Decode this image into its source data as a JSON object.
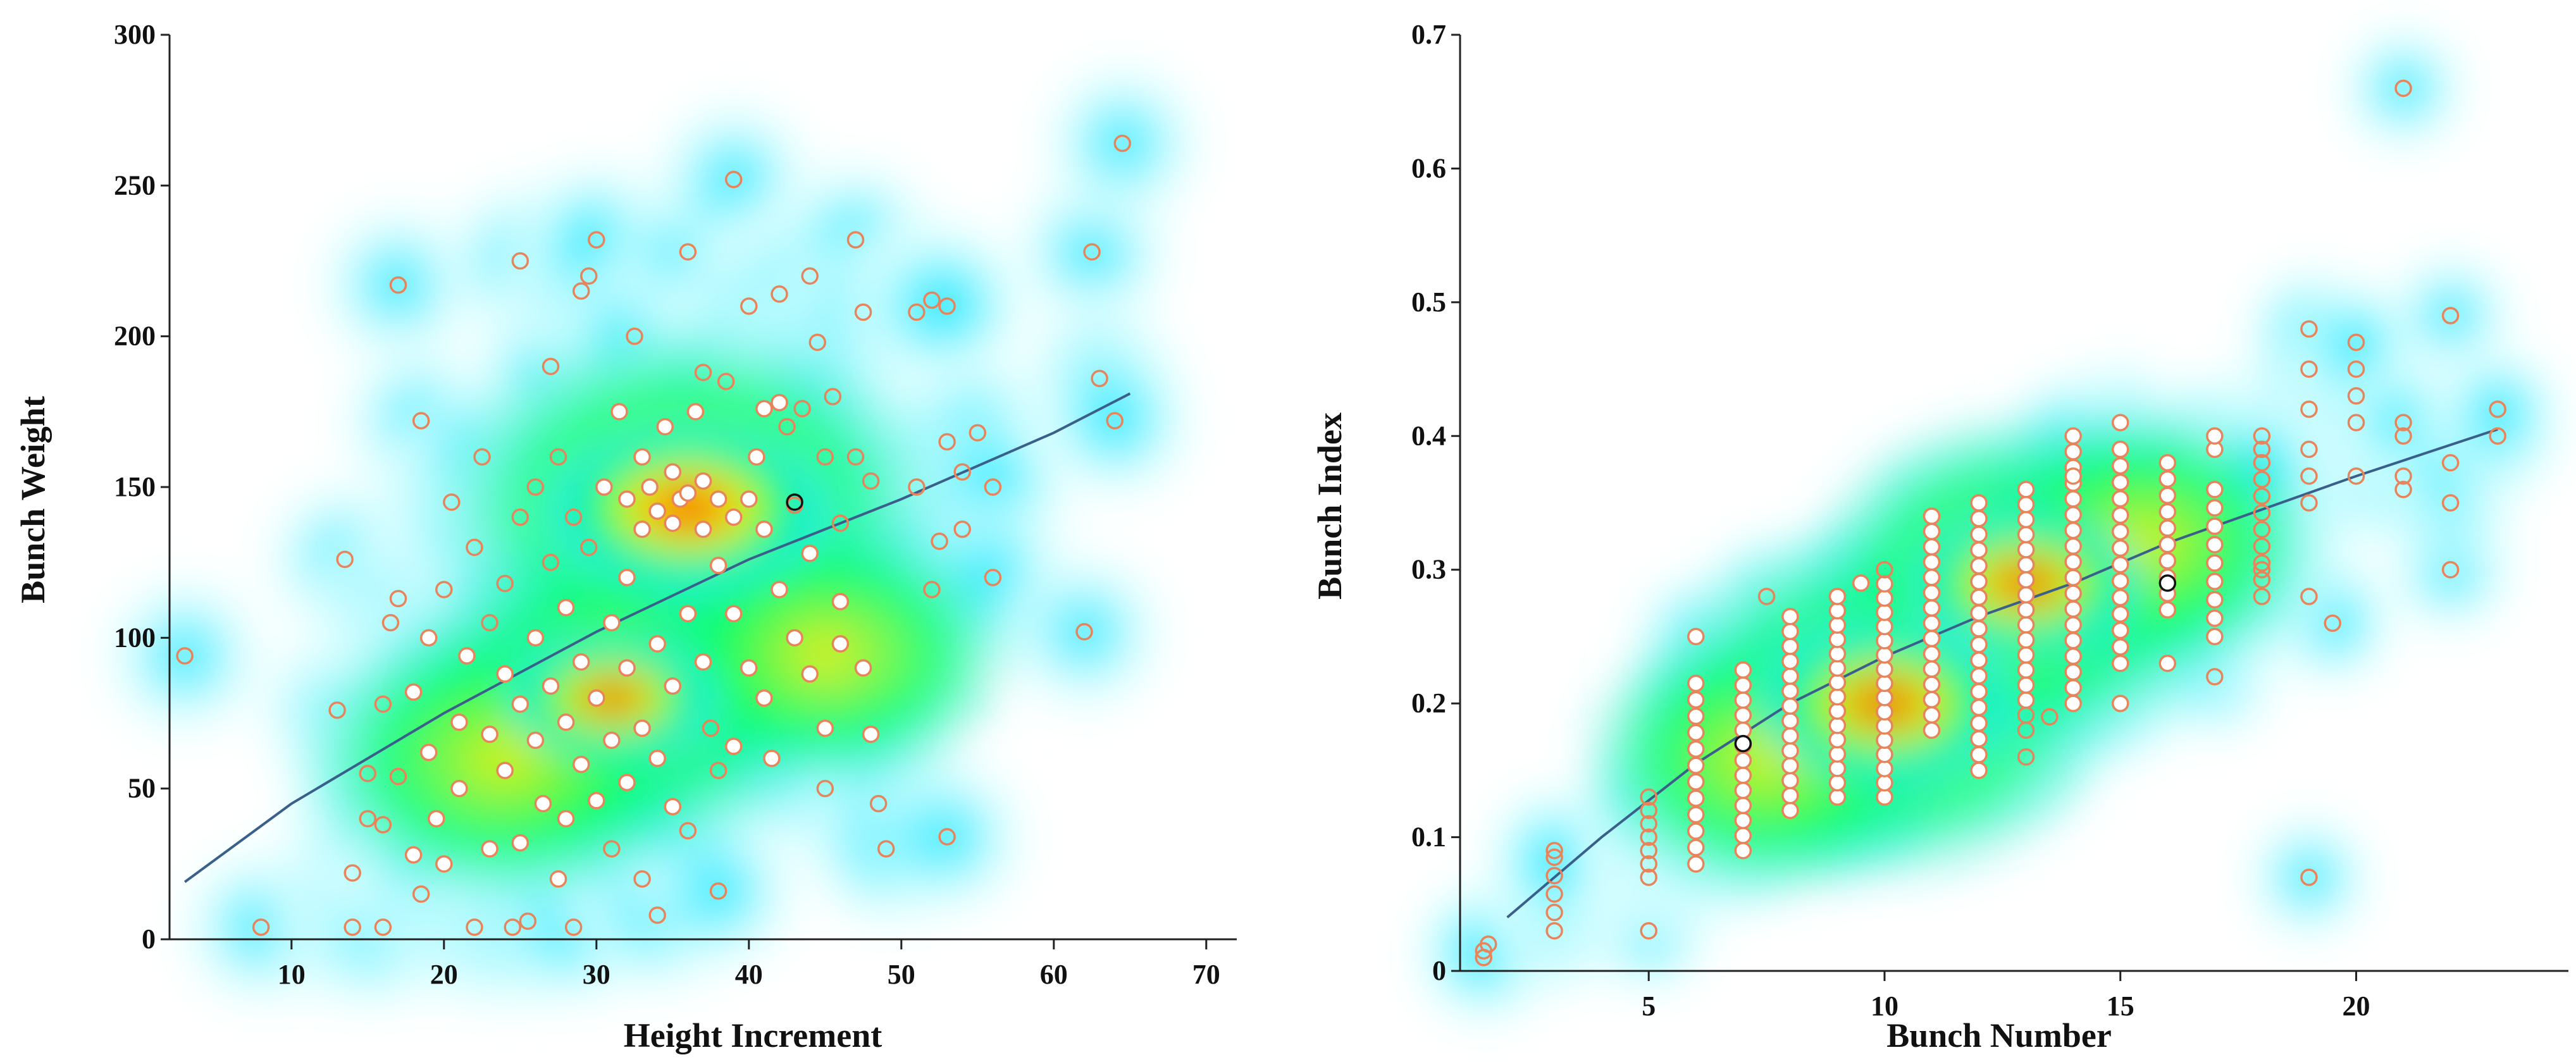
{
  "colors": {
    "marker_stroke": "#e8845a",
    "marker_fill_dense": "#ffffff",
    "trend_line": "#3a5f8a",
    "density_scale": [
      "#e0ffff",
      "#00e5ff",
      "#00ff66",
      "#ffee00",
      "#ff8800",
      "#e02000"
    ]
  },
  "chart_data": [
    {
      "type": "scatter",
      "overlay": "kernel-density-heatmap",
      "xlabel": "Height Increment",
      "ylabel": "Bunch Weight",
      "xlim": [
        2,
        72
      ],
      "ylim": [
        0,
        300
      ],
      "xticks": [
        "10",
        "20",
        "30",
        "40",
        "50",
        "60",
        "70"
      ],
      "yticks": [
        "0",
        "50",
        "100",
        "150",
        "200",
        "250",
        "300"
      ],
      "x_tick_values": [
        10,
        20,
        30,
        40,
        50,
        60,
        70
      ],
      "y_tick_values": [
        0,
        50,
        100,
        150,
        200,
        250,
        300
      ],
      "trend_line": {
        "x": [
          3,
          10,
          20,
          30,
          40,
          50,
          60,
          65
        ],
        "y": [
          19,
          45,
          75,
          102,
          126,
          146,
          168,
          181
        ]
      },
      "density_peaks": [
        {
          "x": 36,
          "y": 143,
          "weight": 1.0
        },
        {
          "x": 31,
          "y": 80,
          "weight": 0.75
        },
        {
          "x": 24,
          "y": 60,
          "weight": 0.55
        },
        {
          "x": 45,
          "y": 95,
          "weight": 0.45
        }
      ],
      "points": [
        [
          3,
          94
        ],
        [
          8,
          4
        ],
        [
          13,
          76
        ],
        [
          13.5,
          126
        ],
        [
          14,
          4
        ],
        [
          14,
          22
        ],
        [
          15,
          40
        ],
        [
          15,
          55
        ],
        [
          16,
          4
        ],
        [
          16,
          38
        ],
        [
          16,
          78
        ],
        [
          16.5,
          105
        ],
        [
          17,
          113
        ],
        [
          17,
          54
        ],
        [
          17,
          217
        ],
        [
          18,
          28
        ],
        [
          18,
          82
        ],
        [
          18.5,
          15
        ],
        [
          18.5,
          172
        ],
        [
          19,
          100
        ],
        [
          19,
          62
        ],
        [
          19.5,
          40
        ],
        [
          20,
          116
        ],
        [
          20,
          25
        ],
        [
          20.5,
          145
        ],
        [
          21,
          72
        ],
        [
          21,
          50
        ],
        [
          21.5,
          94
        ],
        [
          22,
          4
        ],
        [
          22,
          130
        ],
        [
          22.5,
          160
        ],
        [
          23,
          68
        ],
        [
          23,
          105
        ],
        [
          23,
          30
        ],
        [
          24,
          118
        ],
        [
          24,
          88
        ],
        [
          24,
          56
        ],
        [
          24.5,
          4
        ],
        [
          25,
          225
        ],
        [
          25,
          140
        ],
        [
          25,
          78
        ],
        [
          25,
          32
        ],
        [
          25.5,
          6
        ],
        [
          26,
          100
        ],
        [
          26,
          66
        ],
        [
          26,
          150
        ],
        [
          26.5,
          45
        ],
        [
          27,
          125
        ],
        [
          27,
          84
        ],
        [
          27,
          190
        ],
        [
          27.5,
          20
        ],
        [
          27.5,
          160
        ],
        [
          28,
          110
        ],
        [
          28,
          72
        ],
        [
          28,
          40
        ],
        [
          28.5,
          140
        ],
        [
          28.5,
          4
        ],
        [
          29,
          215
        ],
        [
          29,
          92
        ],
        [
          29,
          58
        ],
        [
          29.5,
          220
        ],
        [
          29.5,
          130
        ],
        [
          30,
          232
        ],
        [
          30,
          80
        ],
        [
          30,
          46
        ],
        [
          30.5,
          150
        ],
        [
          31,
          105
        ],
        [
          31,
          66
        ],
        [
          31,
          30
        ],
        [
          31.5,
          175
        ],
        [
          32,
          146
        ],
        [
          32,
          120
        ],
        [
          32,
          90
        ],
        [
          32,
          52
        ],
        [
          32.5,
          200
        ],
        [
          33,
          160
        ],
        [
          33,
          136
        ],
        [
          33,
          70
        ],
        [
          33,
          20
        ],
        [
          33.5,
          150
        ],
        [
          34,
          142
        ],
        [
          34,
          98
        ],
        [
          34,
          60
        ],
        [
          34,
          8
        ],
        [
          34.5,
          170
        ],
        [
          35,
          155
        ],
        [
          35,
          138
        ],
        [
          35,
          84
        ],
        [
          35,
          44
        ],
        [
          35.5,
          146
        ],
        [
          36,
          148
        ],
        [
          36,
          228
        ],
        [
          36,
          108
        ],
        [
          36,
          36
        ],
        [
          36.5,
          175
        ],
        [
          37,
          152
        ],
        [
          37,
          136
        ],
        [
          37,
          92
        ],
        [
          37,
          188
        ],
        [
          37.5,
          70
        ],
        [
          38,
          146
        ],
        [
          38,
          124
        ],
        [
          38,
          56
        ],
        [
          38,
          16
        ],
        [
          38.5,
          185
        ],
        [
          39,
          140
        ],
        [
          39,
          252
        ],
        [
          39,
          108
        ],
        [
          39,
          64
        ],
        [
          40,
          146
        ],
        [
          40,
          210
        ],
        [
          40,
          90
        ],
        [
          40.5,
          160
        ],
        [
          41,
          136
        ],
        [
          41,
          176
        ],
        [
          41,
          80
        ],
        [
          41.5,
          60
        ],
        [
          42,
          214
        ],
        [
          42,
          178
        ],
        [
          42,
          116
        ],
        [
          42.5,
          170
        ],
        [
          43,
          144
        ],
        [
          43,
          100
        ],
        [
          43.5,
          176
        ],
        [
          44,
          220
        ],
        [
          44,
          128
        ],
        [
          44,
          88
        ],
        [
          44.5,
          198
        ],
        [
          45,
          160
        ],
        [
          45,
          50
        ],
        [
          45,
          70
        ],
        [
          45.5,
          180
        ],
        [
          46,
          138
        ],
        [
          46,
          112
        ],
        [
          46,
          98
        ],
        [
          47,
          232
        ],
        [
          47,
          160
        ],
        [
          47.5,
          208
        ],
        [
          47.5,
          90
        ],
        [
          48,
          68
        ],
        [
          48,
          152
        ],
        [
          48.5,
          45
        ],
        [
          49,
          30
        ],
        [
          51,
          150
        ],
        [
          51,
          208
        ],
        [
          52,
          116
        ],
        [
          52,
          212
        ],
        [
          52.5,
          132
        ],
        [
          53,
          165
        ],
        [
          53,
          210
        ],
        [
          53,
          34
        ],
        [
          54,
          155
        ],
        [
          54,
          136
        ],
        [
          55,
          168
        ],
        [
          56,
          150
        ],
        [
          56,
          120
        ],
        [
          62,
          102
        ],
        [
          62.5,
          228
        ],
        [
          63,
          186
        ],
        [
          64,
          172
        ],
        [
          64.5,
          264
        ]
      ],
      "highlight_point": [
        43,
        145
      ]
    },
    {
      "type": "scatter",
      "overlay": "kernel-density-heatmap",
      "xlabel": "Bunch Number",
      "ylabel": "Bunch Index",
      "xlim": [
        1,
        24.5
      ],
      "ylim": [
        0,
        0.7
      ],
      "xticks": [
        "5",
        "10",
        "15",
        "20"
      ],
      "yticks": [
        "0",
        "0.1",
        "0.2",
        "0.3",
        "0.4",
        "0.5",
        "0.6",
        "0.7"
      ],
      "x_tick_values": [
        5,
        10,
        15,
        20
      ],
      "y_tick_values": [
        0,
        0.1,
        0.2,
        0.3,
        0.4,
        0.5,
        0.6,
        0.7
      ],
      "trend_line": {
        "x": [
          2,
          4,
          6,
          8,
          10,
          12,
          14,
          16,
          18,
          20,
          23
        ],
        "y": [
          0.04,
          0.1,
          0.155,
          0.2,
          0.235,
          0.265,
          0.29,
          0.32,
          0.345,
          0.37,
          0.405
        ]
      },
      "density_peaks": [
        {
          "x": 10,
          "y": 0.2,
          "weight": 1.0
        },
        {
          "x": 13,
          "y": 0.29,
          "weight": 0.9
        },
        {
          "x": 7.5,
          "y": 0.16,
          "weight": 0.55
        },
        {
          "x": 15.5,
          "y": 0.32,
          "weight": 0.5
        }
      ],
      "columns": [
        {
          "x": 1.5,
          "ymin": 0.01,
          "ymax": 0.015,
          "n": 2
        },
        {
          "x": 3,
          "ymin": 0.03,
          "ymax": 0.085,
          "n": 5
        },
        {
          "x": 5,
          "ymin": 0.07,
          "ymax": 0.13,
          "n": 7
        },
        {
          "x": 6,
          "ymin": 0.08,
          "ymax": 0.215,
          "n": 12
        },
        {
          "x": 7,
          "ymin": 0.09,
          "ymax": 0.225,
          "n": 13
        },
        {
          "x": 8,
          "ymin": 0.12,
          "ymax": 0.265,
          "n": 14
        },
        {
          "x": 9,
          "ymin": 0.13,
          "ymax": 0.28,
          "n": 15
        },
        {
          "x": 10,
          "ymin": 0.13,
          "ymax": 0.3,
          "n": 17
        },
        {
          "x": 11,
          "ymin": 0.18,
          "ymax": 0.34,
          "n": 15
        },
        {
          "x": 12,
          "ymin": 0.15,
          "ymax": 0.35,
          "n": 18
        },
        {
          "x": 13,
          "ymin": 0.18,
          "ymax": 0.36,
          "n": 17
        },
        {
          "x": 14,
          "ymin": 0.2,
          "ymax": 0.4,
          "n": 18
        },
        {
          "x": 15,
          "ymin": 0.23,
          "ymax": 0.39,
          "n": 14
        },
        {
          "x": 16,
          "ymin": 0.27,
          "ymax": 0.38,
          "n": 10
        },
        {
          "x": 17,
          "ymin": 0.25,
          "ymax": 0.36,
          "n": 9
        },
        {
          "x": 18,
          "ymin": 0.28,
          "ymax": 0.38,
          "n": 9
        }
      ],
      "points": [
        [
          1.5,
          0.01
        ],
        [
          1.6,
          0.02
        ],
        [
          3,
          0.09
        ],
        [
          5,
          0.03
        ],
        [
          6,
          0.25
        ],
        [
          7.5,
          0.28
        ],
        [
          9,
          0.28
        ],
        [
          9.5,
          0.29
        ],
        [
          10,
          0.3
        ],
        [
          11,
          0.34
        ],
        [
          13,
          0.16
        ],
        [
          13.5,
          0.19
        ],
        [
          14,
          0.37
        ],
        [
          15,
          0.41
        ],
        [
          15,
          0.2
        ],
        [
          16,
          0.23
        ],
        [
          17,
          0.22
        ],
        [
          17,
          0.39
        ],
        [
          17,
          0.4
        ],
        [
          18,
          0.39
        ],
        [
          18,
          0.4
        ],
        [
          18,
          0.3
        ],
        [
          19,
          0.07
        ],
        [
          19,
          0.28
        ],
        [
          19,
          0.35
        ],
        [
          19,
          0.37
        ],
        [
          19,
          0.39
        ],
        [
          19,
          0.42
        ],
        [
          19,
          0.45
        ],
        [
          19,
          0.48
        ],
        [
          19.5,
          0.26
        ],
        [
          20,
          0.37
        ],
        [
          20,
          0.41
        ],
        [
          20,
          0.43
        ],
        [
          20,
          0.45
        ],
        [
          20,
          0.47
        ],
        [
          21,
          0.36
        ],
        [
          21,
          0.37
        ],
        [
          21,
          0.4
        ],
        [
          21,
          0.41
        ],
        [
          21,
          0.66
        ],
        [
          22,
          0.3
        ],
        [
          22,
          0.35
        ],
        [
          22,
          0.38
        ],
        [
          22,
          0.49
        ],
        [
          23,
          0.4
        ],
        [
          23,
          0.42
        ]
      ],
      "highlight_points": [
        [
          7,
          0.17
        ],
        [
          16,
          0.29
        ]
      ]
    }
  ]
}
